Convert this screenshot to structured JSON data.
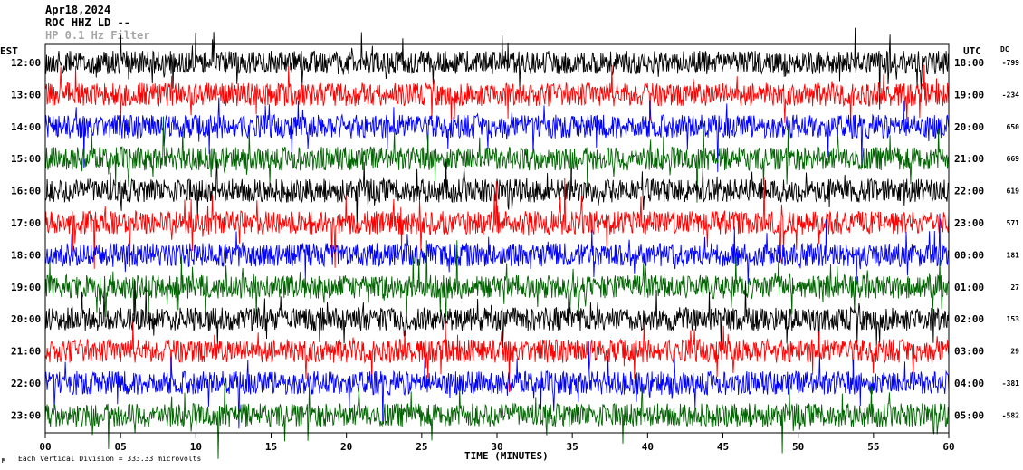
{
  "header": {
    "date": "Apr18,2024",
    "station": "ROC HHZ LD --",
    "filter": "HP 0.1 Hz Filter"
  },
  "left_zone_label": "EST",
  "right_zone_label": "UTC",
  "dc_label": "DC",
  "footer_note": "Each Vertical Division = 333.33 microvolts",
  "chart_data": {
    "type": "helicorder",
    "x_axis": {
      "label": "TIME (MINUTES)",
      "range": [
        0,
        60
      ],
      "tick_labels": [
        "00",
        "05",
        "10",
        "15",
        "20",
        "25",
        "30",
        "35",
        "40",
        "45",
        "50",
        "55",
        "60"
      ]
    },
    "rows": [
      {
        "est": "12:00",
        "utc": "18:00",
        "dc": "-799",
        "color": "#000000"
      },
      {
        "est": "13:00",
        "utc": "19:00",
        "dc": "-234",
        "color": "#ff0000"
      },
      {
        "est": "14:00",
        "utc": "20:00",
        "dc": "650",
        "color": "#0000ff"
      },
      {
        "est": "15:00",
        "utc": "21:00",
        "dc": "669",
        "color": "#006400"
      },
      {
        "est": "16:00",
        "utc": "22:00",
        "dc": "619",
        "color": "#000000"
      },
      {
        "est": "17:00",
        "utc": "23:00",
        "dc": "571",
        "color": "#ff0000"
      },
      {
        "est": "18:00",
        "utc": "00:00",
        "dc": "181",
        "color": "#0000ff"
      },
      {
        "est": "19:00",
        "utc": "01:00",
        "dc": "27",
        "color": "#006400"
      },
      {
        "est": "20:00",
        "utc": "02:00",
        "dc": "153",
        "color": "#000000"
      },
      {
        "est": "21:00",
        "utc": "03:00",
        "dc": "29",
        "color": "#ff0000"
      },
      {
        "est": "22:00",
        "utc": "04:00",
        "dc": "-381",
        "color": "#0000ff"
      },
      {
        "est": "23:00",
        "utc": "05:00",
        "dc": "-582",
        "color": "#006400"
      }
    ],
    "grid": false
  }
}
